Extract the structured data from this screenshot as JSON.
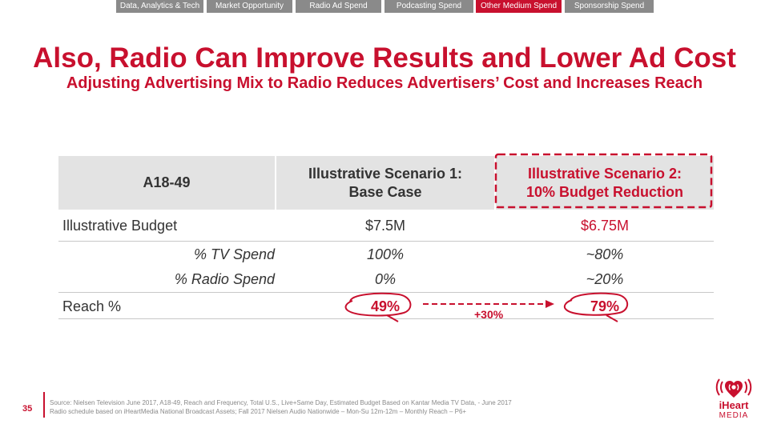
{
  "nav_tabs": [
    {
      "label": "Data, Analytics & Tech",
      "active": false
    },
    {
      "label": "Market Opportunity",
      "active": false
    },
    {
      "label": "Radio Ad Spend",
      "active": false
    },
    {
      "label": "Podcasting Spend",
      "active": false
    },
    {
      "label": "Other Medium Spend",
      "active": true
    },
    {
      "label": "Sponsorship Spend",
      "active": false
    }
  ],
  "title": "Also, Radio Can Improve Results and Lower Ad Cost",
  "subtitle": "Adjusting Advertising Mix to Radio Reduces Advertisers’ Cost and Increases Reach",
  "table": {
    "header": {
      "col0": "A18-49",
      "col1_line1": "Illustrative Scenario 1:",
      "col1_line2": "Base Case",
      "col2_line1": "Illustrative Scenario 2:",
      "col2_line2": "10% Budget Reduction"
    },
    "rows": {
      "budget": {
        "label": "Illustrative Budget",
        "s1": "$7.5M",
        "s2": "$6.75M"
      },
      "tv": {
        "label": "% TV Spend",
        "s1": "100%",
        "s2": "~80%"
      },
      "radio": {
        "label": "% Radio Spend",
        "s1": "0%",
        "s2": "~20%"
      },
      "reach": {
        "label": "Reach %",
        "s1": "49%",
        "s2": "79%"
      }
    }
  },
  "annotation": {
    "uplift": "+30%"
  },
  "footer": {
    "page_number": "35",
    "source_line1": "Source: Nielsen Television June 2017, A18-49, Reach and Frequency, Total U.S., Live+Same Day, Estimated Budget Based on Kantar Media TV Data, - June 2017",
    "source_line2": "Radio schedule based on iHeartMedia National Broadcast Assets; Fall 2017 Nielsen Audio Nationwide – Mon-Su 12m-12m – Monthly Reach – P6+"
  },
  "logo": {
    "word": "iHeart",
    "sub": "MEDIA"
  },
  "colors": {
    "accent": "#c8102e",
    "tab_gray": "#8a8a8a",
    "header_fill": "#e3e3e3"
  }
}
